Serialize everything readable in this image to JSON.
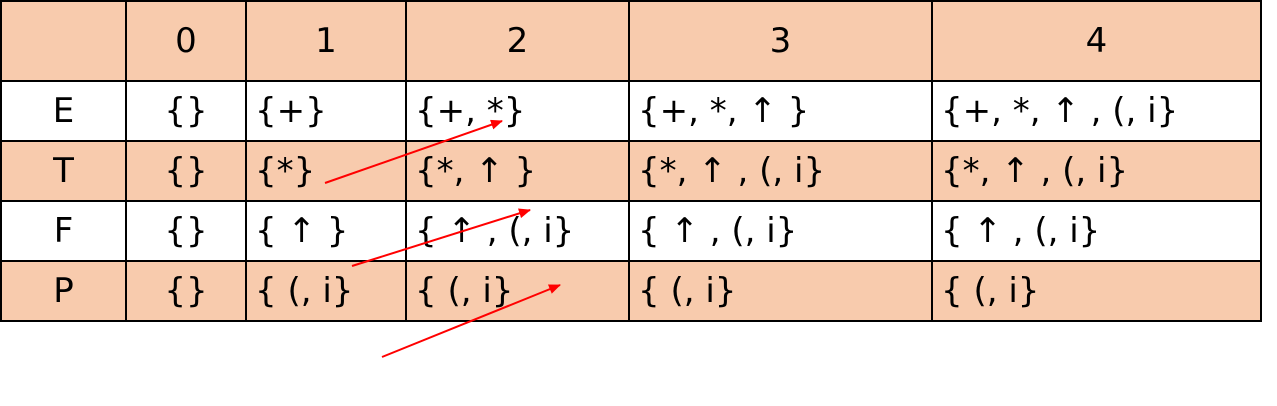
{
  "table": {
    "headers": [
      "",
      "0",
      "1",
      "2",
      "3",
      "4"
    ],
    "rows": [
      {
        "label": "E",
        "cells": [
          "{}",
          "{+}",
          "{+, *}",
          "{+, *,  ↑ }",
          "{+, *,  ↑ , (, i}"
        ]
      },
      {
        "label": "T",
        "cells": [
          "{}",
          "{*}",
          "{*,  ↑ }",
          "{*,  ↑ , (, i}",
          "{*,  ↑ , (, i}"
        ]
      },
      {
        "label": "F",
        "cells": [
          "{}",
          "{ ↑ }",
          "{ ↑ , (, i}",
          "{ ↑ , (, i}",
          "{ ↑ , (, i}"
        ]
      },
      {
        "label": "P",
        "cells": [
          "{}",
          "{ (, i}",
          "{ (, i}",
          "{ (, i}",
          "{ (, i}"
        ]
      }
    ]
  },
  "colors": {
    "shaded_row": "#f8cbad",
    "plain_row": "#ffffff",
    "grid": "#000000",
    "arrow": "#ff0000"
  }
}
